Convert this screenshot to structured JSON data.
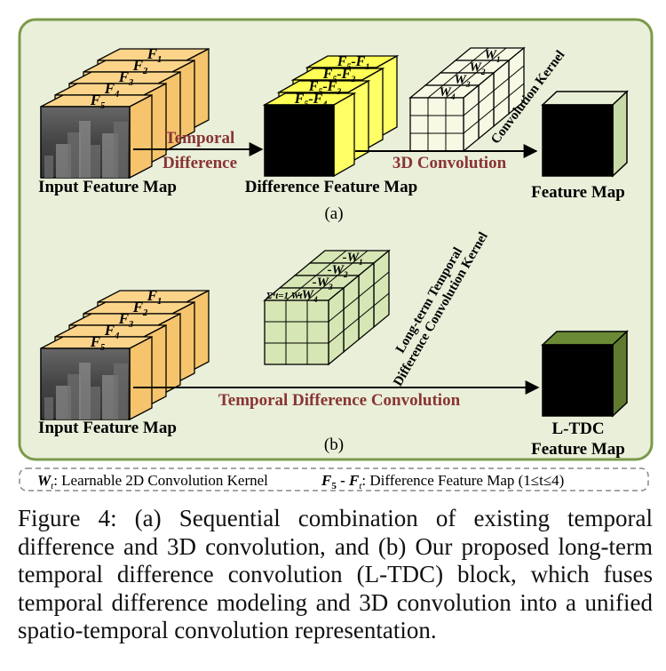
{
  "figure": {
    "panel_a": {
      "input_frames": [
        "F1",
        "F2",
        "F3",
        "F4",
        "F5"
      ],
      "input_label": "Input Feature Map",
      "op1_line1": "Temporal",
      "op1_line2": "Difference",
      "diff_frames": [
        "F5-F1",
        "F5-F2",
        "F5-F3",
        "F5-F4"
      ],
      "diff_label": "Difference Feature Map",
      "kernel_rows": [
        "W1",
        "W2",
        "W3",
        "W4"
      ],
      "kernel_label": "Convolution Kernel",
      "op2": "3D Convolution",
      "output_label": "Feature Map",
      "panel_letter": "(a)"
    },
    "panel_b": {
      "input_frames": [
        "F1",
        "F2",
        "F3",
        "F4",
        "F5"
      ],
      "input_label": "Input Feature Map",
      "kernel_rows": [
        "-W1",
        "-W2",
        "-W3",
        "-W4"
      ],
      "kernel_sum": "Σ⁴t=1 Wt",
      "kernel_label_1": "Long-term Temporal",
      "kernel_label_2": "Difference Convolution Kernel",
      "op": "Temporal Difference Convolution",
      "output_label_1": "L-TDC",
      "output_label_2": "Feature Map",
      "panel_letter": "(b)"
    },
    "legend": {
      "w_sym": "W",
      "w_sub": "t",
      "w_text": ": Learnable 2D Convolution Kernel",
      "f_sym": "F",
      "f_sub5": "5",
      "f_dash": " - ",
      "f_sym2": "F",
      "f_sub_t": "t",
      "f_text": ": Difference Feature Map (1≤t≤4)"
    },
    "colors": {
      "panel_bg": "#e9efd9",
      "panel_border": "#7a9a4a",
      "frame_fill": "#fbd48a",
      "diff_fill": "#ffff55",
      "kernel_a_fill": "#f7f9e4",
      "kernel_b_fill": "#d6e6b4",
      "output_b_side": "#5f7a2e",
      "accent_text": "#8a3434"
    }
  },
  "caption": "Figure 4: (a) Sequential combination of existing temporal difference and 3D convolution, and (b) Our proposed long-term temporal difference convolution (L-TDC) block, which fuses temporal difference modeling and 3D convolution into a unified spatio-temporal convolution representation."
}
